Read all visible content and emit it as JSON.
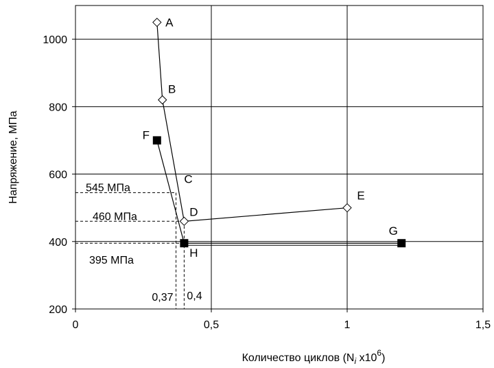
{
  "chart_data": {
    "type": "line",
    "xlabel": "Количество циклов (N",
    "xlabel_sub": "i",
    "xlabel_mid": "  x10",
    "xlabel_sup": "6",
    "xlabel_end": ")",
    "ylabel": "Напряжение, МПа",
    "xlim": [
      0,
      1.5
    ],
    "ylim": [
      200,
      1100
    ],
    "x_ticks": [
      0,
      0.5,
      1,
      1.5
    ],
    "x_tick_labels": [
      "0",
      "0,5",
      "1",
      "1,5"
    ],
    "y_ticks": [
      200,
      400,
      600,
      800,
      1000
    ],
    "y_tick_labels": [
      "200",
      "400",
      "600",
      "800",
      "1000"
    ],
    "grid": true,
    "series": [
      {
        "marker": "open-diamond",
        "points": [
          {
            "label": "A",
            "x": 0.3,
            "y": 1050
          },
          {
            "label": "B",
            "x": 0.32,
            "y": 820
          },
          {
            "label": "C",
            "x": 0.37,
            "y": 545
          },
          {
            "label": "D",
            "x": 0.4,
            "y": 460
          },
          {
            "label": "E",
            "x": 1.0,
            "y": 500
          }
        ],
        "line_points": [
          [
            0.3,
            1050
          ],
          [
            0.32,
            820
          ],
          [
            0.4,
            460
          ],
          [
            1.0,
            500
          ]
        ],
        "marker_points": [
          [
            0.3,
            1050
          ],
          [
            0.32,
            820
          ],
          [
            0.4,
            460
          ],
          [
            1.0,
            500
          ]
        ]
      },
      {
        "marker": "filled-square",
        "points": [
          {
            "label": "F",
            "x": 0.3,
            "y": 700
          },
          {
            "label": "H",
            "x": 0.4,
            "y": 395
          },
          {
            "label": "G",
            "x": 1.2,
            "y": 395
          }
        ],
        "line_points": [
          [
            0.3,
            700
          ],
          [
            0.4,
            395
          ],
          [
            1.2,
            395
          ]
        ],
        "marker_points": [
          [
            0.3,
            700
          ],
          [
            0.4,
            395
          ],
          [
            1.2,
            395
          ]
        ]
      }
    ],
    "reference_lines": [
      {
        "label": "545 МПа",
        "y": 545,
        "x_end": 0.37
      },
      {
        "label": "460 МПа",
        "y": 460,
        "x_end": 0.4
      },
      {
        "label": "395 МПа",
        "y": 395,
        "x_end": 0.4
      }
    ],
    "vertical_refs": [
      {
        "label": "0,37",
        "x": 0.37,
        "y_top": 545
      },
      {
        "label": "0,4",
        "x": 0.4,
        "y_top": 460
      }
    ]
  }
}
